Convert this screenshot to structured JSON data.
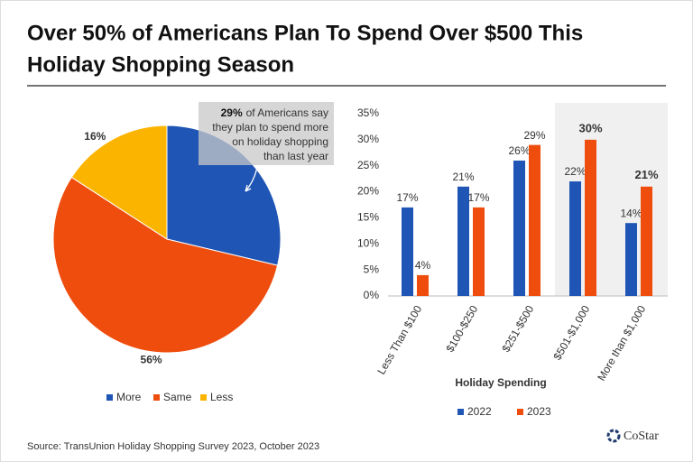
{
  "title": [
    "Over 50% of Americans Plan To Spend Over $500 This",
    "Holiday Shopping Season"
  ],
  "source": "Source: TransUnion Holiday Shopping Survey 2023, October 2023",
  "logo": "CoStar",
  "chart_data": [
    {
      "type": "pie",
      "categories": [
        "More",
        "Same",
        "Less"
      ],
      "values": [
        29,
        56,
        16
      ],
      "value_labels": [
        "29%",
        "56%",
        "16%"
      ],
      "colors": [
        "#1f55b5",
        "#ee4d0e",
        "#fbb400"
      ],
      "annotation": [
        "of Americans say",
        "they plan to spend more",
        "on holiday shopping",
        "than last year"
      ]
    },
    {
      "type": "bar",
      "categories": [
        "Less Than $100",
        "$100-$250",
        "$251-$500",
        "$501-$1,000",
        "More than $1,000"
      ],
      "series": [
        {
          "name": "2022",
          "color": "#1f55b5",
          "values": [
            17,
            21,
            26,
            22,
            14
          ],
          "value_labels": [
            "17%",
            "21%",
            "26%",
            "22%",
            "14%"
          ]
        },
        {
          "name": "2023",
          "color": "#ee4d0e",
          "values": [
            4,
            17,
            29,
            30,
            21
          ],
          "value_labels": [
            "4%",
            "17%",
            "29%",
            "30%",
            "21%"
          ]
        }
      ],
      "xlabel": "Holiday Spending",
      "ylim": [
        0,
        35
      ],
      "yticks": [
        {
          "value": 0,
          "label": "0%"
        },
        {
          "value": 5,
          "label": "5%"
        },
        {
          "value": 10,
          "label": "10%"
        },
        {
          "value": 15,
          "label": "15%"
        },
        {
          "value": 20,
          "label": "20%"
        },
        {
          "value": 25,
          "label": "25%"
        },
        {
          "value": 30,
          "label": "30%"
        },
        {
          "value": 35,
          "label": "35%"
        }
      ]
    }
  ]
}
